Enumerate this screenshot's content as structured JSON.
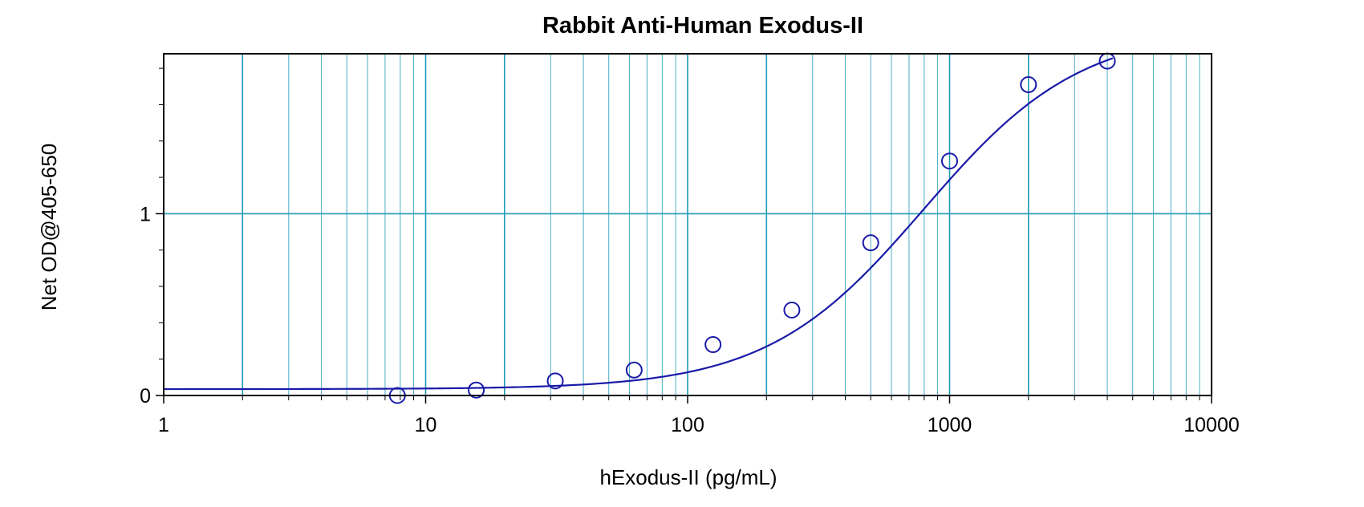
{
  "chart_data": {
    "type": "scatter",
    "title": "Rabbit Anti-Human Exodus-II",
    "xlabel": "hExodus-II (pg/mL)",
    "ylabel": "Net OD@405-650",
    "x_scale": "log",
    "xlim": [
      1,
      10000
    ],
    "ylim": [
      0,
      1.88
    ],
    "x_ticks": [
      {
        "value": 1,
        "label": "1"
      },
      {
        "value": 10,
        "label": "10"
      },
      {
        "value": 100,
        "label": "100"
      },
      {
        "value": 1000,
        "label": "1000"
      },
      {
        "value": 10000,
        "label": "10000"
      }
    ],
    "y_ticks": [
      {
        "value": 0,
        "label": "0"
      },
      {
        "value": 1,
        "label": "1"
      }
    ],
    "y_minor_ticks": [
      0.2,
      0.4,
      0.6,
      0.8,
      1.2,
      1.4,
      1.6,
      1.8
    ],
    "grid": true,
    "points": [
      {
        "x": 7.8,
        "y": 0.0
      },
      {
        "x": 15.6,
        "y": 0.03
      },
      {
        "x": 31.25,
        "y": 0.08
      },
      {
        "x": 62.5,
        "y": 0.14
      },
      {
        "x": 125,
        "y": 0.28
      },
      {
        "x": 250,
        "y": 0.47
      },
      {
        "x": 500,
        "y": 0.84
      },
      {
        "x": 1000,
        "y": 1.29
      },
      {
        "x": 2000,
        "y": 1.71
      },
      {
        "x": 4000,
        "y": 1.84
      }
    ],
    "fit": {
      "type": "4PL",
      "bottom": 0.035,
      "top": 2.02,
      "ec50": 800,
      "hill": 1.45
    },
    "colors": {
      "series": "#1a1aa8",
      "grid": "#1e9bb8",
      "axis": "#000000"
    }
  }
}
